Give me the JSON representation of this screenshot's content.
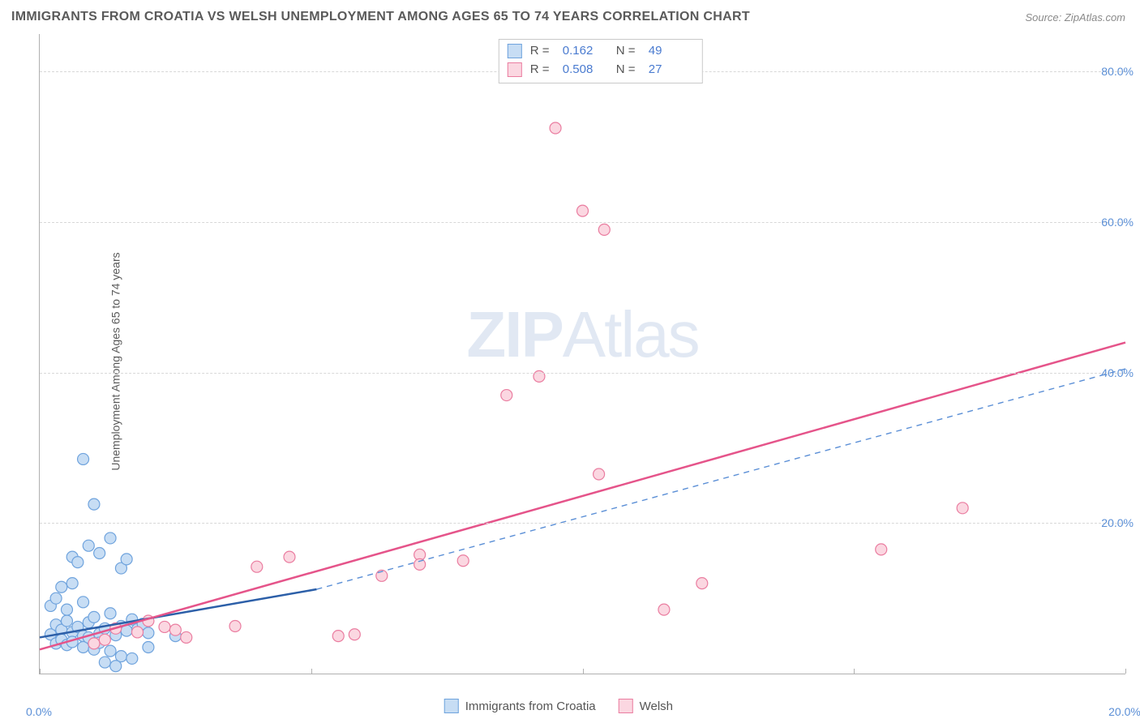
{
  "title": "IMMIGRANTS FROM CROATIA VS WELSH UNEMPLOYMENT AMONG AGES 65 TO 74 YEARS CORRELATION CHART",
  "source": "Source: ZipAtlas.com",
  "ylabel": "Unemployment Among Ages 65 to 74 years",
  "watermark_a": "ZIP",
  "watermark_b": "Atlas",
  "chart": {
    "type": "scatter",
    "background_color": "#ffffff",
    "grid_color": "#d8d8d8",
    "axis_color": "#b0b0b0",
    "tick_text_color": "#5b8fd6",
    "xlim": [
      0,
      20
    ],
    "ylim": [
      0,
      85
    ],
    "xticks": [
      0.0,
      20.0
    ],
    "xtick_labels": [
      "0.0%",
      "20.0%"
    ],
    "yticks": [
      20,
      40,
      60,
      80
    ],
    "ytick_labels": [
      "20.0%",
      "40.0%",
      "60.0%",
      "80.0%"
    ],
    "marker_radius": 7,
    "marker_stroke_width": 1.2,
    "line_width_solid": 2.5,
    "line_width_dash": 1.4,
    "series": [
      {
        "name": "Immigrants from Croatia",
        "color_fill": "#c7ddf4",
        "color_stroke": "#6fa3dd",
        "points": [
          [
            0.2,
            5.2
          ],
          [
            0.3,
            6.5
          ],
          [
            0.4,
            5.8
          ],
          [
            0.5,
            7.0
          ],
          [
            0.6,
            5.5
          ],
          [
            0.7,
            6.2
          ],
          [
            0.8,
            5.0
          ],
          [
            0.9,
            6.8
          ],
          [
            1.0,
            7.5
          ],
          [
            1.1,
            5.3
          ],
          [
            1.2,
            6.0
          ],
          [
            1.3,
            8.0
          ],
          [
            1.4,
            5.1
          ],
          [
            1.5,
            6.3
          ],
          [
            1.6,
            5.7
          ],
          [
            1.7,
            7.2
          ],
          [
            1.8,
            5.9
          ],
          [
            1.9,
            6.6
          ],
          [
            2.0,
            5.4
          ],
          [
            0.3,
            4.0
          ],
          [
            0.4,
            4.5
          ],
          [
            0.5,
            3.8
          ],
          [
            0.6,
            4.2
          ],
          [
            0.8,
            3.5
          ],
          [
            0.9,
            4.8
          ],
          [
            1.0,
            3.2
          ],
          [
            1.1,
            4.1
          ],
          [
            1.3,
            3.0
          ],
          [
            1.5,
            2.3
          ],
          [
            1.7,
            2.0
          ],
          [
            2.0,
            3.5
          ],
          [
            2.5,
            5.0
          ],
          [
            0.2,
            9.0
          ],
          [
            0.3,
            10.0
          ],
          [
            0.5,
            8.5
          ],
          [
            0.8,
            9.5
          ],
          [
            0.6,
            15.5
          ],
          [
            0.7,
            14.8
          ],
          [
            0.9,
            17.0
          ],
          [
            1.1,
            16.0
          ],
          [
            1.3,
            18.0
          ],
          [
            1.5,
            14.0
          ],
          [
            1.6,
            15.2
          ],
          [
            1.0,
            22.5
          ],
          [
            0.8,
            28.5
          ],
          [
            0.4,
            11.5
          ],
          [
            0.6,
            12.0
          ],
          [
            1.2,
            1.5
          ],
          [
            1.4,
            1.0
          ]
        ],
        "trend_line": {
          "x1": 0,
          "y1": 4.8,
          "x2": 5.1,
          "y2": 11.2,
          "style": "solid",
          "color": "#2c5fa8"
        },
        "trend_dash": {
          "x1": 5.1,
          "y1": 11.2,
          "x2": 20,
          "y2": 40.5,
          "style": "dash",
          "color": "#5b8fd6"
        }
      },
      {
        "name": "Welsh",
        "color_fill": "#fbd7e1",
        "color_stroke": "#ea7da0",
        "points": [
          [
            1.4,
            6.0
          ],
          [
            1.8,
            5.5
          ],
          [
            2.0,
            7.0
          ],
          [
            2.3,
            6.2
          ],
          [
            2.5,
            5.8
          ],
          [
            3.6,
            6.3
          ],
          [
            4.0,
            14.2
          ],
          [
            4.6,
            15.5
          ],
          [
            5.5,
            5.0
          ],
          [
            5.8,
            5.2
          ],
          [
            6.3,
            13.0
          ],
          [
            7.0,
            15.8
          ],
          [
            7.0,
            14.5
          ],
          [
            7.8,
            15.0
          ],
          [
            8.6,
            37.0
          ],
          [
            9.2,
            39.5
          ],
          [
            9.5,
            72.5
          ],
          [
            10.0,
            61.5
          ],
          [
            10.3,
            26.5
          ],
          [
            10.4,
            59.0
          ],
          [
            11.5,
            8.5
          ],
          [
            12.2,
            12.0
          ],
          [
            15.5,
            16.5
          ],
          [
            17.0,
            22.0
          ],
          [
            1.0,
            4.0
          ],
          [
            1.2,
            4.5
          ],
          [
            2.7,
            4.8
          ]
        ],
        "trend_line": {
          "x1": 0,
          "y1": 3.2,
          "x2": 20,
          "y2": 44.0,
          "style": "solid",
          "color": "#e5548a"
        }
      }
    ]
  },
  "legend_top": {
    "swatch1_fill": "#c7ddf4",
    "swatch1_stroke": "#6fa3dd",
    "swatch2_fill": "#fbd7e1",
    "swatch2_stroke": "#ea7da0",
    "r_label": "R  =",
    "n_label": "N  =",
    "r1": "0.162",
    "n1": "49",
    "r2": "0.508",
    "n2": "27"
  },
  "legend_bottom": {
    "swatch1_fill": "#c7ddf4",
    "swatch1_stroke": "#6fa3dd",
    "label1": "Immigrants from Croatia",
    "swatch2_fill": "#fbd7e1",
    "swatch2_stroke": "#ea7da0",
    "label2": "Welsh"
  }
}
